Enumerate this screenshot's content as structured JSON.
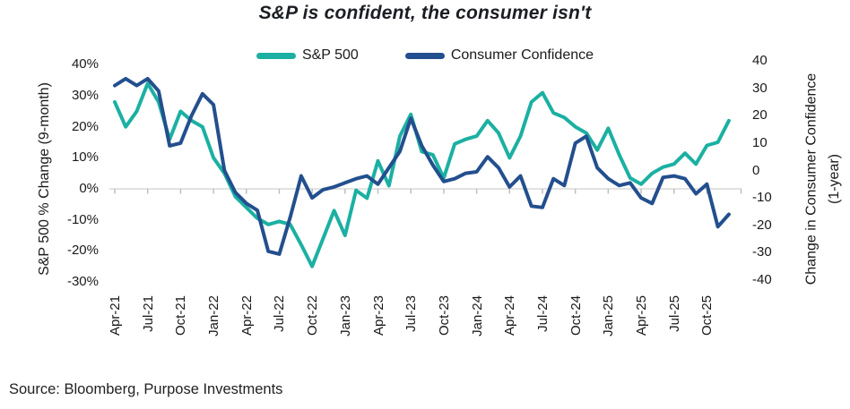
{
  "title": "S&P is confident, the consumer isn't",
  "source": "Source: Bloomberg, Purpose Investments",
  "colors": {
    "sp500": "#1bb0a2",
    "consumer_confidence": "#234f8e",
    "gridline": "#d9d9d9",
    "axis_tick": "#bfbfbf",
    "text": "#1a1a1a"
  },
  "chart_data": {
    "type": "line",
    "title": "S&P is confident, the consumer isn't",
    "legend_position": "top",
    "grid": "zero-line-only",
    "x": [
      "Apr-21",
      "May-21",
      "Jun-21",
      "Jul-21",
      "Aug-21",
      "Sep-21",
      "Oct-21",
      "Nov-21",
      "Dec-21",
      "Jan-22",
      "Feb-22",
      "Mar-22",
      "Apr-22",
      "May-22",
      "Jun-22",
      "Jul-22",
      "Aug-22",
      "Sep-22",
      "Oct-22",
      "Nov-22",
      "Dec-22",
      "Jan-23",
      "Feb-23",
      "Mar-23",
      "Apr-23",
      "May-23",
      "Jun-23",
      "Jul-23",
      "Aug-23",
      "Sep-23",
      "Oct-23",
      "Nov-23",
      "Dec-23",
      "Jan-24",
      "Feb-24",
      "Mar-24",
      "Apr-24",
      "May-24",
      "Jun-24",
      "Jul-24",
      "Aug-24",
      "Sep-24",
      "Oct-24",
      "Nov-24",
      "Dec-24",
      "Jan-25",
      "Feb-25",
      "Mar-25",
      "Apr-25",
      "May-25",
      "Jun-25",
      "Jul-25",
      "Aug-25",
      "Sep-25",
      "Oct-25",
      "Nov-25",
      "Dec-25"
    ],
    "x_tick_interval": 3,
    "x_tick_labels_shown": [
      "Apr-21",
      "Jul-21",
      "Oct-21",
      "Jan-22",
      "Apr-22",
      "Jul-22",
      "Oct-22",
      "Jan-23",
      "Apr-23",
      "Jul-23",
      "Oct-23",
      "Jan-24",
      "Apr-24",
      "Jul-24",
      "Oct-24",
      "Jan-25",
      "Apr-25",
      "Jul-25",
      "Oct-25"
    ],
    "left_axis": {
      "label": "S&P 500 % Change (9-month)",
      "tick_labels": [
        "40%",
        "30%",
        "20%",
        "10%",
        "0%",
        "-10%",
        "-20%",
        "-30%"
      ],
      "tick_values": [
        40,
        30,
        20,
        10,
        0,
        -10,
        -20,
        -30
      ],
      "range": [
        -30,
        40
      ]
    },
    "right_axis": {
      "label_line1": "Change in Consumer Confidence",
      "label_line2": "(1-year)",
      "tick_labels": [
        "40",
        "30",
        "20",
        "10",
        "0",
        "-10",
        "-20",
        "-30",
        "-40"
      ],
      "tick_values": [
        40,
        30,
        20,
        10,
        0,
        -10,
        -20,
        -30,
        -40
      ],
      "range": [
        -40,
        40
      ]
    },
    "series": [
      {
        "name": "S&P 500",
        "axis": "left",
        "color": "#1bb0a2",
        "values": [
          28,
          20,
          25,
          34,
          28,
          16,
          25,
          22,
          20,
          10,
          5,
          -2.5,
          -6,
          -9.5,
          -11.5,
          -10.5,
          -11.5,
          -18,
          -25,
          -16,
          -7,
          -15,
          -0.5,
          -3,
          9,
          1,
          17,
          24,
          12,
          11,
          3.5,
          14.5,
          16,
          17,
          22,
          18,
          10,
          17,
          28,
          31,
          24.5,
          23,
          20,
          18,
          12.5,
          19.5,
          11,
          3.5,
          1.5,
          5,
          7,
          8,
          11.5,
          8,
          14,
          15,
          22
        ]
      },
      {
        "name": "Consumer Confidence",
        "axis": "right",
        "color": "#234f8e",
        "values": [
          31,
          33.5,
          31,
          33.5,
          29,
          9,
          10,
          20,
          28,
          24,
          0,
          -8,
          -12,
          -14.5,
          -29.5,
          -30.5,
          -17,
          -2,
          -10,
          -7,
          -6,
          -4.5,
          -3,
          -2,
          -5,
          1,
          7,
          19,
          9,
          2,
          -4,
          -3,
          -1,
          -0.5,
          5,
          1,
          -6,
          -2,
          -13,
          -13.5,
          -3,
          -5.5,
          10,
          12.5,
          1,
          -3,
          -5.5,
          -4.5,
          -10,
          -12,
          -2.5,
          -2,
          -3,
          -8.5,
          -5,
          -20.5,
          -16
        ]
      }
    ]
  }
}
